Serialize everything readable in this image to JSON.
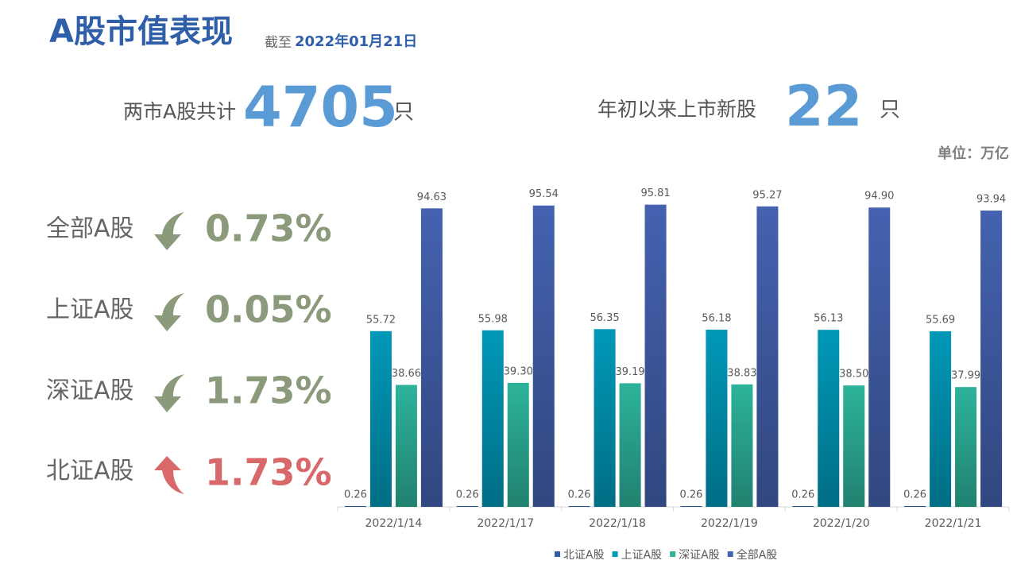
{
  "header": {
    "title": "A股市值表现",
    "subtitle_prefix": "截至",
    "subtitle_date": "2022年01月21日"
  },
  "stats": [
    {
      "label": "两市A股共计",
      "value": "4705",
      "unit": "只"
    },
    {
      "label": "年初以来上市新股",
      "value": "22",
      "unit": "只"
    }
  ],
  "unit_note": "单位：万亿",
  "changes": [
    {
      "name": "全部A股",
      "value": "0.73%",
      "direction": "down",
      "color": "#8a9a7a"
    },
    {
      "name": "上证A股",
      "value": "0.05%",
      "direction": "down",
      "color": "#8a9a7a"
    },
    {
      "name": "深证A股",
      "value": "1.73%",
      "direction": "down",
      "color": "#8a9a7a"
    },
    {
      "name": "北证A股",
      "value": "1.73%",
      "direction": "up",
      "color": "#d9686a"
    }
  ],
  "chart_data": {
    "type": "bar",
    "categories": [
      "2022/1/14",
      "2022/1/17",
      "2022/1/18",
      "2022/1/19",
      "2022/1/20",
      "2022/1/21"
    ],
    "ylim": [
      0,
      100
    ],
    "series": [
      {
        "name": "北证A股",
        "color": "#2e5fa8",
        "values": [
          0.26,
          0.26,
          0.26,
          0.26,
          0.26,
          0.26
        ],
        "value_labels": [
          "0.26",
          "0.26",
          "0.26",
          "0.26",
          "0.26",
          "0.26"
        ]
      },
      {
        "name": "上证A股",
        "color": "#0098b8",
        "values": [
          55.72,
          55.98,
          56.35,
          56.18,
          56.13,
          55.69
        ],
        "value_labels": [
          "55.72",
          "55.98",
          "56.35",
          "56.18",
          "56.13",
          "55.69"
        ]
      },
      {
        "name": "深证A股",
        "color": "#2db39a",
        "values": [
          38.66,
          39.3,
          39.19,
          38.83,
          38.5,
          37.99
        ],
        "value_labels": [
          "38.66",
          "39.30",
          "39.19",
          "38.83",
          "38.50",
          "37.99"
        ]
      },
      {
        "name": "全部A股",
        "color": "#4462b0",
        "values": [
          94.63,
          95.54,
          95.81,
          95.27,
          94.9,
          93.94
        ],
        "value_labels": [
          "94.63",
          "95.54",
          "95.81",
          "95.27",
          "94.90",
          "93.94"
        ]
      }
    ]
  }
}
